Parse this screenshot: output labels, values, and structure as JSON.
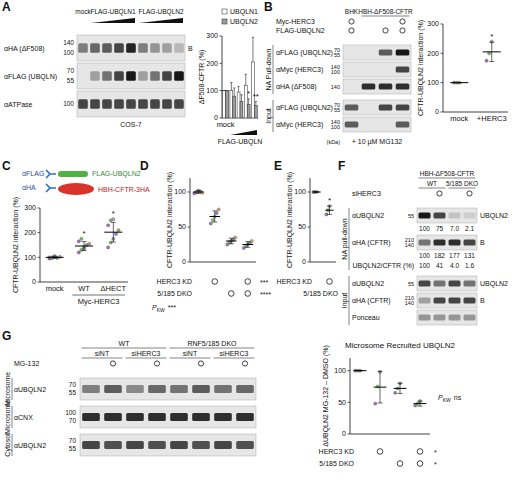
{
  "panel_labels": [
    "A",
    "B",
    "C",
    "D",
    "E",
    "F",
    "G"
  ],
  "blots": [
    {
      "header_rows": [
        [
          {
            "label": "mock",
            "lanes": 1
          },
          {
            "label": "FLAG-UBQLN1",
            "lanes": 4,
            "ramp": true
          },
          {
            "label": "FLAG-UBQLN2",
            "lanes": 4,
            "ramp": true
          }
        ]
      ],
      "sections": [
        {
          "rows": [
            {
              "label": "αHA (ΔF508)",
              "markers": [
                140,
                100
              ],
              "side": "B",
              "bands": [
                0.45,
                0.55,
                0.6,
                0.7,
                0.85,
                0.45,
                0.35,
                0.3,
                0.2
              ]
            },
            {
              "label": "αFLAG (UBQLN)",
              "markers": [
                70,
                55
              ],
              "bands": [
                0,
                0.3,
                0.5,
                0.7,
                0.9,
                0.3,
                0.5,
                0.7,
                0.9
              ]
            },
            {
              "label": "αATPase",
              "markers": [
                100
              ],
              "bands": [
                0.7,
                0.7,
                0.7,
                0.7,
                0.7,
                0.7,
                0.7,
                0.7,
                0.7
              ]
            }
          ]
        }
      ],
      "footer": "COS-7"
    },
    {
      "header_rows": [
        [
          {
            "label": "BHK",
            "lanes": 1
          },
          {
            "label": "HBH-ΔF508-CFTR",
            "lanes": 3
          }
        ]
      ],
      "conditions": [
        {
          "label": "Myc-HERC3",
          "marks": [
            true,
            false,
            false,
            true
          ]
        },
        {
          "label": "FLAG-UBQLN2",
          "marks": [
            true,
            false,
            true,
            true
          ]
        }
      ],
      "sections": [
        {
          "label": "NA Pull-down",
          "rows": [
            {
              "label": "αFLAG (UBQLN2)",
              "markers": [
                70,
                55
              ],
              "bands": [
                0,
                0,
                0.6,
                0.9
              ]
            },
            {
              "label": "αMyc (HERC3)",
              "markers": [
                140,
                100
              ],
              "bands": [
                0,
                0,
                0,
                0.7
              ]
            },
            {
              "label": "αHA (ΔF508)",
              "markers": [
                140
              ],
              "bands": [
                0,
                0.8,
                0.8,
                0.8
              ]
            }
          ]
        },
        {
          "label": "Input",
          "rows": [
            {
              "label": "αFLAG (UBQLN2)",
              "markers": [
                70,
                55
              ],
              "bands": [
                0.6,
                0,
                0.7,
                0.7
              ]
            },
            {
              "label": "αMyc (HERC3)",
              "markers": [
                140,
                100
              ],
              "bands": [
                0.6,
                0,
                0,
                0.6
              ]
            }
          ]
        }
      ],
      "footer": "+ 10 µM MG132",
      "unit": "(kDa)"
    },
    {
      "header_rows": [
        [
          {
            "label": "HBH-ΔF508-CFTR",
            "lanes": 4
          }
        ],
        [
          {
            "label": "WT",
            "lanes": 2
          },
          {
            "label": "5/185 DKO",
            "lanes": 2
          }
        ]
      ],
      "conditions": [
        {
          "label": "siHERC3",
          "marks": [
            false,
            true,
            false,
            true
          ]
        }
      ],
      "sections": [
        {
          "label": "NA pull-down",
          "rows": [
            {
              "label": "αUBQLN2",
              "markers": [
                55
              ],
              "side": "UBQLN2",
              "bands": [
                0.9,
                0.7,
                0.15,
                0.1
              ],
              "quant": [
                "100",
                "75",
                "7.0",
                "2.1"
              ]
            },
            {
              "label": "αHA (CFTR)",
              "markers": [
                210,
                140
              ],
              "side": "B",
              "bands": [
                0.5,
                0.8,
                0.8,
                0.7
              ],
              "quant": [
                "100",
                "182",
                "177",
                "131"
              ]
            },
            {
              "label": "UBQLN2/CFTR (%)",
              "quant": [
                "100",
                "41",
                "4.0",
                "1.6"
              ]
            }
          ]
        },
        {
          "label": "Input",
          "rows": [
            {
              "label": "αUBQLN2",
              "markers": [
                55
              ],
              "side": "UBQLN2",
              "bands": [
                0.7,
                0.5,
                0.7,
                0.5
              ]
            },
            {
              "label": "αHA (CFTR)",
              "markers": [
                210,
                140
              ],
              "side": "B",
              "bands": [
                0.3,
                0.7,
                0.7,
                0.7
              ]
            },
            {
              "label": "Ponceau",
              "bands": [
                0.35,
                0.35,
                0.35,
                0.35
              ]
            }
          ]
        }
      ]
    },
    {
      "header_rows": [
        [
          {
            "label": "WT",
            "lanes": 4
          },
          {
            "label": "RNF5/185 DKO",
            "lanes": 4
          }
        ],
        [
          {
            "label": "siNT",
            "lanes": 2
          },
          {
            "label": "siHERC3",
            "lanes": 2
          },
          {
            "label": "siNT",
            "lanes": 2
          },
          {
            "label": "siHERC3",
            "lanes": 2
          }
        ]
      ],
      "conditions": [
        {
          "label": "MG-132",
          "marks": [
            false,
            true,
            false,
            true,
            false,
            true,
            false,
            true
          ]
        }
      ],
      "sections": [
        {
          "label": "Microsome",
          "rows": [
            {
              "label": "αUBQLN2",
              "markers": [
                70,
                55
              ],
              "bands": [
                0.45,
                0.6,
                0.4,
                0.55,
                0.5,
                0.6,
                0.5,
                0.55
              ]
            }
          ]
        },
        {
          "label": "Microsome",
          "rows": [
            {
              "label": "αCNX",
              "markers": [
                100,
                70
              ],
              "bands": [
                0.8,
                0.8,
                0.8,
                0.8,
                0.8,
                0.8,
                0.8,
                0.8
              ]
            }
          ]
        },
        {
          "label": "Cytosol",
          "rows": [
            {
              "label": "αUBQLN2",
              "markers": [
                70,
                55
              ],
              "bands": [
                0.7,
                0.65,
                0.7,
                0.65,
                0.7,
                0.65,
                0.7,
                0.65
              ]
            }
          ]
        }
      ]
    }
  ],
  "schematic": {
    "antibodies": [
      "αFLAG",
      "αHA"
    ],
    "proteins": [
      "FLAG-UBQLN2",
      "HBH-CFTR-3HA"
    ]
  },
  "chart_data": [
    {
      "type": "bar",
      "y_label": "ΔF508-CFTR (%)",
      "ylim": [
        0,
        300
      ],
      "yticks": [
        0,
        100,
        200,
        300
      ],
      "categories": [
        "mock",
        null,
        null,
        null,
        null
      ],
      "x_label": "FLAG-UBQLN",
      "legend": "top",
      "series": [
        {
          "name": "UBQLN1",
          "color": "#ffffff",
          "values": [
            100,
            100,
            95,
            120,
            205
          ],
          "errors": [
            0,
            30,
            20,
            40,
            90
          ],
          "significance": [
            null,
            null,
            null,
            null,
            null
          ]
        },
        {
          "name": "UBQLN2",
          "color": "#9e9e9e",
          "values": [
            100,
            80,
            60,
            50,
            45
          ],
          "errors": [
            0,
            30,
            25,
            20,
            15
          ],
          "significance": [
            null,
            null,
            null,
            "*",
            "**"
          ]
        }
      ]
    },
    {
      "type": "dot",
      "y_label": "CFTR-UBQLN2 interaction (%)",
      "ylim": [
        0,
        300
      ],
      "yticks": [
        0,
        100,
        200,
        300
      ],
      "categories": [
        "mock",
        "+HERC3"
      ],
      "series": [
        {
          "color": "#000000",
          "values": [
            100,
            205
          ],
          "errors": [
            0,
            33
          ],
          "points": [
            [
              100,
              100,
              100
            ],
            [
              175,
              200,
              240
            ]
          ],
          "significance": [
            null,
            "*"
          ]
        }
      ]
    },
    {
      "type": "dot",
      "y_label": "CFTR-UBQLN2 interaction (%)",
      "ylim": [
        0,
        300
      ],
      "yticks": [
        0,
        100,
        200,
        300
      ],
      "categories": [
        "mock",
        "WT",
        "ΔHECT"
      ],
      "x_group": {
        "label": "Myc-HERC3",
        "categories": [
          1,
          2
        ]
      },
      "series": [
        {
          "color": "#000000",
          "values": [
            100,
            146,
            202
          ],
          "errors": [
            4,
            18,
            40
          ],
          "points": [
            [
              95,
              100,
              105,
              98,
              102,
              100,
              97,
              103
            ],
            [
              120,
              130,
              140,
              150,
              155,
              165,
              175,
              135
            ],
            [
              140,
              160,
              175,
              195,
              210,
              230,
              250,
              255
            ]
          ],
          "significance": [
            null,
            "*",
            "*"
          ]
        }
      ]
    },
    {
      "type": "dot",
      "y_label": "CFTR-UBQLN2 interaction (%)",
      "ylim": [
        0,
        120
      ],
      "yticks": [
        0,
        50,
        100
      ],
      "categories": [
        null,
        null,
        null,
        null
      ],
      "series": [
        {
          "color": "#000000",
          "values": [
            100,
            65,
            30,
            25
          ],
          "errors": [
            2,
            8,
            4,
            4
          ],
          "points": [
            [
              98,
              100,
              102,
              101,
              99
            ],
            [
              55,
              60,
              65,
              70,
              75
            ],
            [
              25,
              28,
              30,
              32,
              35
            ],
            [
              20,
              23,
              25,
              27,
              30
            ]
          ]
        }
      ],
      "conditions": [
        {
          "label": "HERC3 KD",
          "marks": [
            false,
            true,
            false,
            true
          ],
          "significance": "***"
        },
        {
          "label": "5/185 DKO",
          "marks": [
            false,
            false,
            true,
            true
          ],
          "significance": "****"
        }
      ],
      "stat": {
        "label": "P",
        "sub": "KW",
        "value": "***"
      }
    },
    {
      "type": "dot",
      "y_label": "CFTR-UBQLN2 interaction (%)",
      "ylim": [
        0,
        120
      ],
      "yticks": [
        0,
        50,
        100
      ],
      "categories": [
        null,
        null
      ],
      "series": [
        {
          "color": "#000000",
          "values": [
            100,
            74
          ],
          "errors": [
            0,
            6
          ],
          "points": [
            [
              100,
              100,
              100
            ],
            [
              68,
              74,
              80
            ]
          ],
          "significance": [
            null,
            "*"
          ]
        }
      ],
      "conditions": [
        {
          "label": "HERC3 KD",
          "marks": [
            false,
            true
          ]
        }
      ],
      "footer": "5/185 DKO"
    },
    {
      "type": "dot",
      "title": "Microsome Recruited UBQLN2",
      "y_label": "ΔUBQLN2 MG-132 – DMSO (%)",
      "ylim": [
        0,
        120
      ],
      "yticks": [
        0,
        50,
        100
      ],
      "categories": [
        null,
        null,
        null,
        null
      ],
      "series": [
        {
          "color": "#000000",
          "values": [
            100,
            74,
            72,
            48
          ],
          "errors": [
            0,
            25,
            8,
            4
          ],
          "points": [
            [
              100,
              100,
              100
            ],
            [
              48,
              75,
              98
            ],
            [
              65,
              72,
              80
            ],
            [
              45,
              48,
              52
            ]
          ]
        }
      ],
      "conditions": [
        {
          "label": "HERC3 KD",
          "marks": [
            false,
            true,
            false,
            true
          ],
          "significance": "*"
        },
        {
          "label": "5/185 DKO",
          "marks": [
            false,
            false,
            true,
            true
          ],
          "significance": "*"
        }
      ],
      "stat": {
        "label": "P",
        "sub": "KW",
        "value": "ns"
      }
    }
  ]
}
